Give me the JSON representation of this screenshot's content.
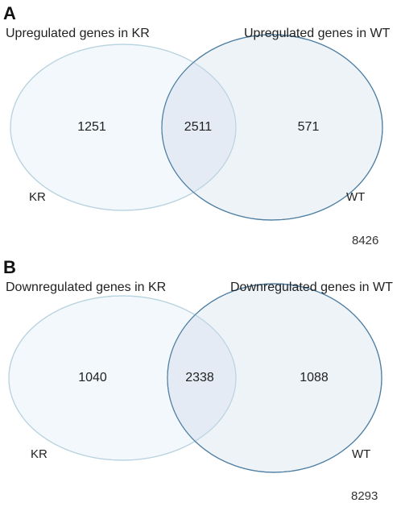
{
  "panels": [
    {
      "letter": "A",
      "left_title": "Upregulated genes in KR",
      "right_title": "Upregulated genes in WT",
      "left_only": "1251",
      "overlap": "2511",
      "right_only": "571",
      "left_label": "KR",
      "right_label": "WT",
      "total": "8426"
    },
    {
      "letter": "B",
      "left_title": "Downregulated genes in KR",
      "right_title": "Downregulated genes in WT",
      "left_only": "1040",
      "overlap": "2338",
      "right_only": "1088",
      "left_label": "KR",
      "right_label": "WT",
      "total": "8293"
    }
  ],
  "colors": {
    "left_fill": "#f2f8fb",
    "left_stroke": "#b9d3df",
    "right_fill": "#eef3f8",
    "right_stroke": "#4f7fa3",
    "overlap_fill": "#e4ebf4"
  }
}
